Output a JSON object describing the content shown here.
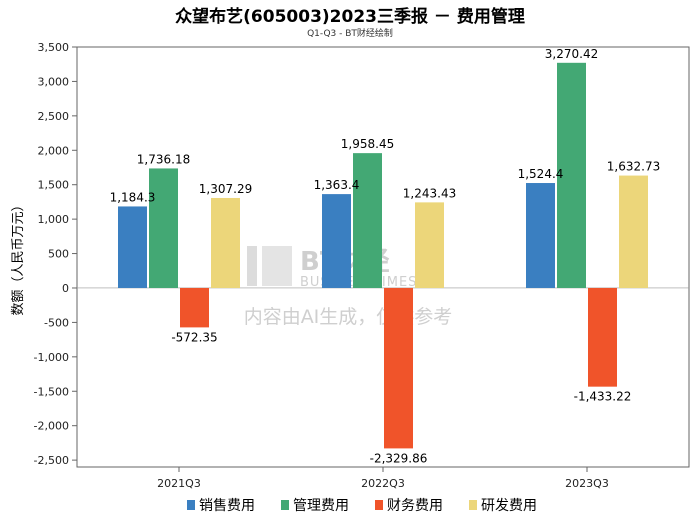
{
  "title": "众望布艺(605003)2023三季报 － 费用管理",
  "subtitle": "Q1-Q3 - BT财经绘制",
  "watermark": {
    "logo_text": "BT财经",
    "logo_sub": "BUSINESSTIMES",
    "notice": "内容由AI生成，仅供参考"
  },
  "chart_data": {
    "type": "bar",
    "title": "众望布艺(605003)2023三季报 － 费用管理",
    "subtitle": "Q1-Q3 - BT财经绘制",
    "xlabel": "",
    "ylabel": "数额（人民币万元）",
    "categories": [
      "2021Q3",
      "2022Q3",
      "2023Q3"
    ],
    "ylim": [
      -2600,
      3500
    ],
    "yticks": [
      3500,
      3000,
      2500,
      2000,
      1500,
      1000,
      500,
      0,
      -500,
      -1000,
      -1500,
      -2000,
      -2500
    ],
    "ytick_labels": [
      "3,500",
      "3,000",
      "2,500",
      "2,000",
      "1,500",
      "1,000",
      "500",
      "0",
      "-500",
      "-1,000",
      "-1,500",
      "-2,000",
      "-2,500"
    ],
    "series": [
      {
        "name": "销售费用",
        "color": "#3a7fc1",
        "values": [
          1184.3,
          1363.4,
          1524.4
        ],
        "labels": [
          "1,184.3",
          "1,363.4",
          "1,524.4"
        ]
      },
      {
        "name": "管理费用",
        "color": "#43a874",
        "values": [
          1736.18,
          1958.45,
          3270.42
        ],
        "labels": [
          "1,736.18",
          "1,958.45",
          "3,270.42"
        ]
      },
      {
        "name": "财务费用",
        "color": "#f0542a",
        "values": [
          -572.35,
          -2329.86,
          -1433.22
        ],
        "labels": [
          "-572.35",
          "-2,329.86",
          "-1,433.22"
        ]
      },
      {
        "name": "研发费用",
        "color": "#ecd67a",
        "values": [
          1307.29,
          1243.43,
          1632.73
        ],
        "labels": [
          "1,307.29",
          "1,243.43",
          "1,632.73"
        ]
      }
    ],
    "legend_position": "bottom",
    "grid": false
  }
}
